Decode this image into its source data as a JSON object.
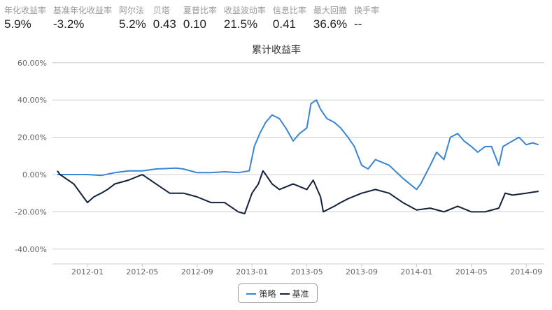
{
  "stats": [
    {
      "label": "年化收益率",
      "value": "5.9%"
    },
    {
      "label": "基准年化收益率",
      "value": "-3.2%"
    },
    {
      "label": "阿尔法",
      "value": "5.2%"
    },
    {
      "label": "贝塔",
      "value": "0.43"
    },
    {
      "label": "夏普比率",
      "value": "0.10"
    },
    {
      "label": "收益波动率",
      "value": "21.5%"
    },
    {
      "label": "信息比率",
      "value": "0.41"
    },
    {
      "label": "最大回撤",
      "value": "36.6%"
    },
    {
      "label": "换手率",
      "value": "--"
    }
  ],
  "chart_data": {
    "type": "line",
    "title": "累计收益率",
    "xlabel": "",
    "ylabel": "",
    "ylim": [
      -48,
      62
    ],
    "yticks": [
      "60.00%",
      "40.00%",
      "20.00%",
      "0.00%",
      "-20.00%",
      "-40.00%"
    ],
    "ytick_values": [
      60,
      40,
      20,
      0,
      -20,
      -40
    ],
    "xticks": [
      "2012-01",
      "2012-05",
      "2012-09",
      "2013-01",
      "2013-05",
      "2013-09",
      "2014-01",
      "2014-05",
      "2014-09"
    ],
    "legend_position": "bottom-center",
    "series": [
      {
        "name": "策略",
        "color": "#3a84d4",
        "points": [
          [
            "2011-10-25",
            0
          ],
          [
            "2011-12-01",
            0
          ],
          [
            "2012-01-01",
            0
          ],
          [
            "2012-02-01",
            -0.5
          ],
          [
            "2012-03-01",
            1
          ],
          [
            "2012-04-01",
            2
          ],
          [
            "2012-05-01",
            2
          ],
          [
            "2012-06-01",
            3
          ],
          [
            "2012-07-15",
            3.5
          ],
          [
            "2012-08-01",
            3
          ],
          [
            "2012-09-01",
            1
          ],
          [
            "2012-10-01",
            1
          ],
          [
            "2012-11-01",
            1.5
          ],
          [
            "2012-12-01",
            1
          ],
          [
            "2012-12-25",
            2
          ],
          [
            "2013-01-06",
            15
          ],
          [
            "2013-01-18",
            22
          ],
          [
            "2013-02-01",
            28
          ],
          [
            "2013-02-15",
            32
          ],
          [
            "2013-03-01",
            30
          ],
          [
            "2013-03-15",
            25
          ],
          [
            "2013-04-01",
            18
          ],
          [
            "2013-04-15",
            22
          ],
          [
            "2013-05-01",
            25
          ],
          [
            "2013-05-10",
            38
          ],
          [
            "2013-05-22",
            40
          ],
          [
            "2013-06-01",
            35
          ],
          [
            "2013-06-15",
            30
          ],
          [
            "2013-07-01",
            28
          ],
          [
            "2013-07-15",
            25
          ],
          [
            "2013-08-01",
            20
          ],
          [
            "2013-08-15",
            15
          ],
          [
            "2013-09-01",
            5
          ],
          [
            "2013-09-15",
            3
          ],
          [
            "2013-10-01",
            8
          ],
          [
            "2013-11-01",
            5
          ],
          [
            "2013-12-01",
            -2
          ],
          [
            "2014-01-01",
            -8
          ],
          [
            "2014-01-10",
            -5
          ],
          [
            "2014-02-01",
            5
          ],
          [
            "2014-02-15",
            12
          ],
          [
            "2014-03-01",
            8
          ],
          [
            "2014-03-15",
            20
          ],
          [
            "2014-04-01",
            22
          ],
          [
            "2014-04-15",
            18
          ],
          [
            "2014-05-01",
            15
          ],
          [
            "2014-05-15",
            12
          ],
          [
            "2014-06-01",
            15
          ],
          [
            "2014-06-15",
            15
          ],
          [
            "2014-07-01",
            5
          ],
          [
            "2014-07-10",
            15
          ],
          [
            "2014-08-01",
            18
          ],
          [
            "2014-08-15",
            20
          ],
          [
            "2014-09-01",
            16
          ],
          [
            "2014-09-15",
            17
          ],
          [
            "2014-09-28",
            16
          ]
        ]
      },
      {
        "name": "基准",
        "color": "#13213a",
        "points": [
          [
            "2011-10-25",
            2
          ],
          [
            "2011-11-01",
            0
          ],
          [
            "2011-12-01",
            -5
          ],
          [
            "2012-01-01",
            -15
          ],
          [
            "2012-01-15",
            -12
          ],
          [
            "2012-02-01",
            -10
          ],
          [
            "2012-02-15",
            -8
          ],
          [
            "2012-03-01",
            -5
          ],
          [
            "2012-04-01",
            -3
          ],
          [
            "2012-05-01",
            0
          ],
          [
            "2012-06-01",
            -5
          ],
          [
            "2012-07-01",
            -10
          ],
          [
            "2012-08-01",
            -10
          ],
          [
            "2012-09-01",
            -12
          ],
          [
            "2012-10-01",
            -15
          ],
          [
            "2012-11-01",
            -15
          ],
          [
            "2012-12-01",
            -20
          ],
          [
            "2012-12-15",
            -21
          ],
          [
            "2013-01-01",
            -10
          ],
          [
            "2013-01-15",
            -5
          ],
          [
            "2013-01-25",
            2
          ],
          [
            "2013-02-01",
            0
          ],
          [
            "2013-02-15",
            -5
          ],
          [
            "2013-03-01",
            -8
          ],
          [
            "2013-04-01",
            -5
          ],
          [
            "2013-05-01",
            -8
          ],
          [
            "2013-05-15",
            -3
          ],
          [
            "2013-06-01",
            -12
          ],
          [
            "2013-06-07",
            -20
          ],
          [
            "2013-07-01",
            -17
          ],
          [
            "2013-07-15",
            -15
          ],
          [
            "2013-08-01",
            -13
          ],
          [
            "2013-09-01",
            -10
          ],
          [
            "2013-10-01",
            -8
          ],
          [
            "2013-11-01",
            -10
          ],
          [
            "2013-12-01",
            -15
          ],
          [
            "2014-01-01",
            -19
          ],
          [
            "2014-02-01",
            -18
          ],
          [
            "2014-03-01",
            -20
          ],
          [
            "2014-04-01",
            -17
          ],
          [
            "2014-05-01",
            -20
          ],
          [
            "2014-06-01",
            -20
          ],
          [
            "2014-07-01",
            -18
          ],
          [
            "2014-07-15",
            -10
          ],
          [
            "2014-08-01",
            -11
          ],
          [
            "2014-09-01",
            -10
          ],
          [
            "2014-09-28",
            -9
          ]
        ]
      }
    ]
  }
}
